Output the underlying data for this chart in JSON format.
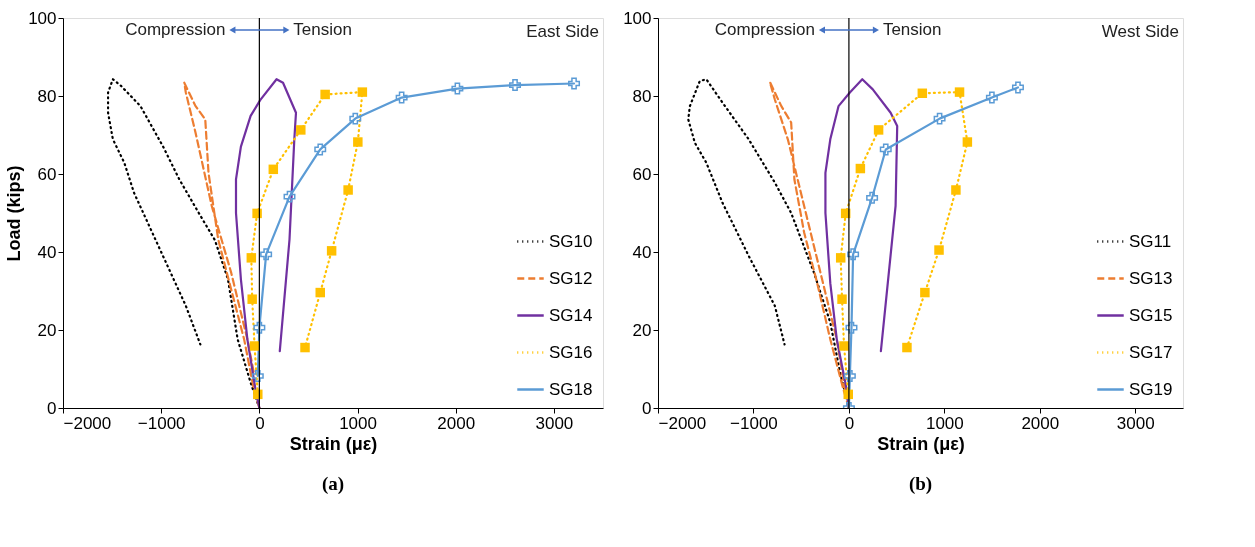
{
  "chart_data": [
    {
      "type": "line",
      "title": "(a)",
      "xlabel": "Strain (με)",
      "ylabel": "Load (kips)",
      "xlim": [
        -2000,
        3500
      ],
      "xticks": [
        -2000,
        -1000,
        0,
        1000,
        2000,
        3000
      ],
      "ylim": [
        0,
        100
      ],
      "yticks": [
        0,
        20,
        40,
        60,
        80,
        100
      ],
      "grid": false,
      "legend": "bottom right",
      "annotations": [
        "Compression",
        "Tension",
        "East Side"
      ],
      "ref_lines": [
        {
          "axis": "x",
          "value": 0,
          "color": "#000000"
        }
      ],
      "series": [
        {
          "name": "SG10",
          "color": "#000000",
          "line_style": "dotted",
          "marker": "none",
          "x": [
            0,
            -89,
            -221,
            -320,
            -452,
            -617,
            -815,
            -980,
            -1211,
            -1409,
            -1492,
            -1541,
            -1541,
            -1492,
            -1376,
            -1277,
            -1013,
            -749,
            -601
          ],
          "values": [
            0,
            6.5,
            17.6,
            33,
            43,
            50,
            58.6,
            67,
            77.4,
            82.6,
            84.3,
            80.9,
            75.7,
            68.9,
            62.9,
            55.2,
            40.7,
            26.2,
            16.3
          ]
        },
        {
          "name": "SG12",
          "color": "#ed7d31",
          "line_style": "dashed",
          "marker": "none",
          "x": [
            0,
            -56,
            -155,
            -287,
            -419,
            -518,
            -551,
            -650,
            -765,
            -749,
            -650,
            -485,
            -287,
            -122,
            -56
          ],
          "values": [
            0,
            4.8,
            17.6,
            30.4,
            43.2,
            60.3,
            74,
            77.4,
            83.4,
            80.9,
            70.6,
            51.8,
            34.7,
            17.6,
            9
          ]
        },
        {
          "name": "SG14",
          "color": "#7030a0",
          "line_style": "solid",
          "marker": "none",
          "x": [
            0,
            -40,
            -122,
            -188,
            -238,
            -238,
            -188,
            -89,
            10,
            175,
            241,
            373,
            356,
            307,
            208
          ],
          "values": [
            0,
            4.8,
            17.6,
            33,
            50,
            58.6,
            67,
            74.9,
            79,
            84.3,
            83.4,
            75.7,
            68.9,
            43.2,
            14.6
          ]
        },
        {
          "name": "SG16",
          "color": "#ffc000",
          "line_style": "dotted",
          "marker": "square",
          "x": [
            -16,
            -49,
            -73,
            -82,
            -23,
            142,
            422,
            670,
            1049,
            1003,
            904,
            736,
            620,
            465
          ],
          "values": [
            3.5,
            15.9,
            27.9,
            38.5,
            49.9,
            61.2,
            71.3,
            80.4,
            81,
            68.2,
            55.9,
            40.3,
            29.6,
            15.5
          ]
        },
        {
          "name": "SG18",
          "color": "#5b9bd5",
          "line_style": "solid",
          "marker": "cross",
          "x": [
            -16,
            0,
            69,
            307,
            620,
            977,
            1449,
            2017,
            2604,
            3205
          ],
          "values": [
            8.2,
            20.6,
            39.4,
            54.2,
            66.3,
            74.2,
            79.6,
            81.9,
            82.8,
            83.2
          ]
        }
      ]
    },
    {
      "type": "line",
      "title": "(b)",
      "xlabel": "Strain (με)",
      "xlim": [
        -2000,
        3500
      ],
      "xticks": [
        -2000,
        -1000,
        0,
        1000,
        2000,
        3000
      ],
      "ylim": [
        0,
        100
      ],
      "yticks": [
        0,
        20,
        40,
        60,
        80,
        100
      ],
      "grid": false,
      "legend": "bottom right",
      "annotations": [
        "Compression",
        "Tension",
        "West Side"
      ],
      "ref_lines": [
        {
          "axis": "x",
          "value": 0,
          "color": "#000000"
        }
      ],
      "series": [
        {
          "name": "SG11",
          "color": "#000000",
          "line_style": "dotted",
          "marker": "none",
          "x": [
            0,
            -92,
            -195,
            -366,
            -605,
            -776,
            -1050,
            -1324,
            -1494,
            -1563,
            -1666,
            -1683,
            -1614,
            -1494,
            -1324,
            -1050,
            -776,
            -674
          ],
          "values": [
            0,
            9,
            21.9,
            34.7,
            50,
            57.8,
            68.9,
            78.3,
            84.3,
            83.8,
            77.4,
            74,
            68,
            62.9,
            52.6,
            39,
            26.2,
            16.3
          ]
        },
        {
          "name": "SG13",
          "color": "#ed7d31",
          "line_style": "dashed",
          "marker": "none",
          "x": [
            0,
            -58,
            -195,
            -332,
            -469,
            -571,
            -605,
            -708,
            -828,
            -776,
            -640,
            -469,
            -298,
            -127,
            -41
          ],
          "values": [
            0,
            4.8,
            17.6,
            32,
            45,
            58.6,
            73.2,
            77.4,
            83.6,
            79.1,
            68.9,
            51.8,
            34.7,
            17.6,
            4.8
          ]
        },
        {
          "name": "SG15",
          "color": "#7030a0",
          "line_style": "solid",
          "marker": "none",
          "x": [
            0,
            -24,
            -127,
            -195,
            -246,
            -246,
            -195,
            -109,
            10,
            140,
            250,
            437,
            506,
            489,
            335
          ],
          "values": [
            0,
            4.8,
            17.6,
            32,
            50,
            60.3,
            68.9,
            77.4,
            80.9,
            84.3,
            81.7,
            75.7,
            72.3,
            51.8,
            14.6
          ]
        },
        {
          "name": "SG17",
          "color": "#ffc000",
          "line_style": "dotted",
          "marker": "square",
          "x": [
            -7,
            -51,
            -72,
            -86,
            -34,
            120,
            311,
            769,
            1159,
            1241,
            1121,
            944,
            796,
            608
          ],
          "values": [
            3.5,
            15.9,
            27.9,
            38.5,
            49.9,
            61.4,
            71.3,
            80.7,
            81,
            68.2,
            55.9,
            40.5,
            29.6,
            15.5
          ]
        },
        {
          "name": "SG19",
          "color": "#5b9bd5",
          "line_style": "solid",
          "marker": "cross",
          "x": [
            0,
            10,
            27,
            44,
            243,
            386,
            950,
            1498,
            1771
          ],
          "values": [
            0,
            8.2,
            20.6,
            39.4,
            53.9,
            66.3,
            74.2,
            79.6,
            82.2
          ]
        }
      ]
    }
  ]
}
